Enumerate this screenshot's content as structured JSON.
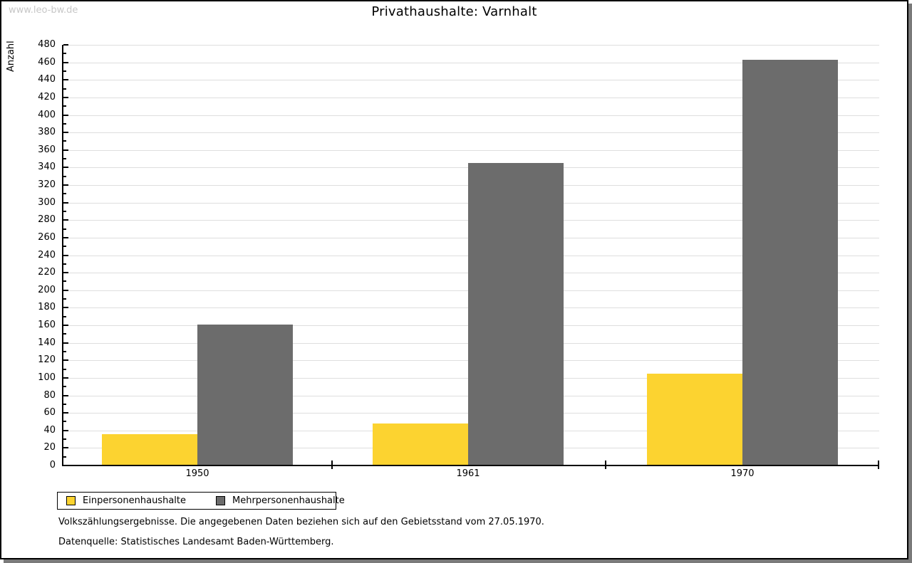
{
  "watermark": "www.leo-bw.de",
  "chart_data": {
    "type": "bar",
    "title": "Privathaushalte: Varnhalt",
    "categories": [
      "1950",
      "1961",
      "1970"
    ],
    "series": [
      {
        "name": "Einpersonenhaushalte",
        "color": "#FCD330",
        "values": [
          35,
          47,
          104
        ]
      },
      {
        "name": "Mehrpersonenhaushalte",
        "color": "#6C6C6C",
        "values": [
          160,
          344,
          462
        ]
      }
    ],
    "xlabel": "",
    "ylabel": "Anzahl",
    "ylim": [
      0,
      480
    ],
    "ytick_step": 20,
    "yminor_step": 10,
    "grid": true,
    "legend_position": "bottom-left",
    "gridline_color": "#dedede"
  },
  "footnotes": [
    "Volkszählungsergebnisse. Die angegebenen Daten beziehen sich auf den Gebietsstand vom 27.05.1970.",
    "Datenquelle: Statistisches Landesamt Baden-Württemberg."
  ]
}
